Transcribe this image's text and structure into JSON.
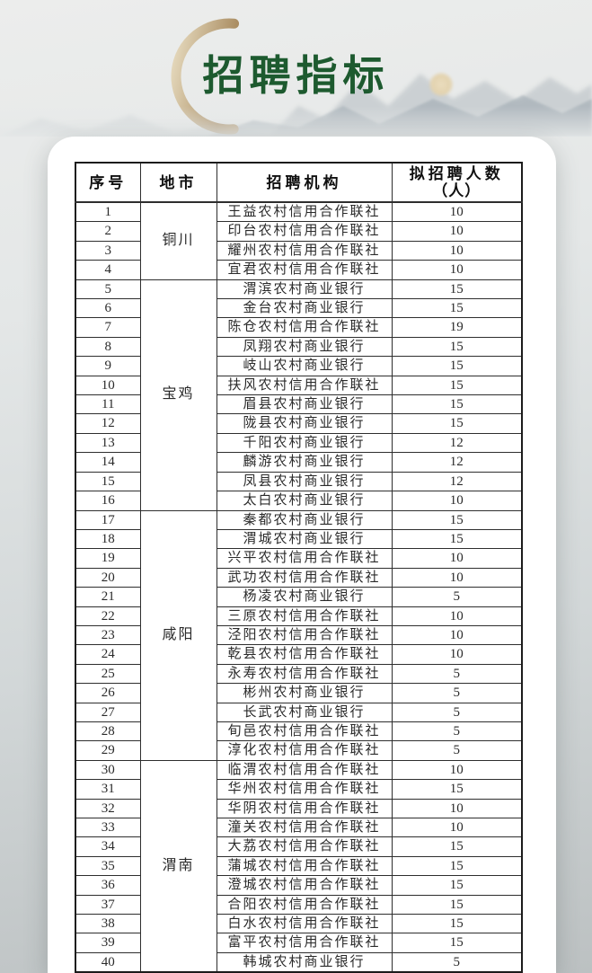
{
  "title": "招聘指标",
  "table": {
    "columns": [
      {
        "label": "序号"
      },
      {
        "label": "地市"
      },
      {
        "label": "招聘机构"
      },
      {
        "label": "拟招聘人数",
        "label2": "（人）"
      }
    ],
    "groups": [
      {
        "city": "铜川",
        "rows": [
          {
            "no": "1",
            "org": "王益农村信用合作联社",
            "count": "10"
          },
          {
            "no": "2",
            "org": "印台农村信用合作联社",
            "count": "10"
          },
          {
            "no": "3",
            "org": "耀州农村信用合作联社",
            "count": "10"
          },
          {
            "no": "4",
            "org": "宜君农村信用合作联社",
            "count": "10"
          }
        ]
      },
      {
        "city": "宝鸡",
        "rows": [
          {
            "no": "5",
            "org": "渭滨农村商业银行",
            "count": "15"
          },
          {
            "no": "6",
            "org": "金台农村商业银行",
            "count": "15"
          },
          {
            "no": "7",
            "org": "陈仓农村信用合作联社",
            "count": "19"
          },
          {
            "no": "8",
            "org": "凤翔农村商业银行",
            "count": "15"
          },
          {
            "no": "9",
            "org": "岐山农村商业银行",
            "count": "15"
          },
          {
            "no": "10",
            "org": "扶风农村信用合作联社",
            "count": "15"
          },
          {
            "no": "11",
            "org": "眉县农村商业银行",
            "count": "15"
          },
          {
            "no": "12",
            "org": "陇县农村商业银行",
            "count": "15"
          },
          {
            "no": "13",
            "org": "千阳农村商业银行",
            "count": "12"
          },
          {
            "no": "14",
            "org": "麟游农村商业银行",
            "count": "12"
          },
          {
            "no": "15",
            "org": "凤县农村商业银行",
            "count": "12"
          },
          {
            "no": "16",
            "org": "太白农村商业银行",
            "count": "10"
          }
        ]
      },
      {
        "city": "咸阳",
        "rows": [
          {
            "no": "17",
            "org": "秦都农村商业银行",
            "count": "15"
          },
          {
            "no": "18",
            "org": "渭城农村商业银行",
            "count": "15"
          },
          {
            "no": "19",
            "org": "兴平农村信用合作联社",
            "count": "10"
          },
          {
            "no": "20",
            "org": "武功农村信用合作联社",
            "count": "10"
          },
          {
            "no": "21",
            "org": "杨凌农村商业银行",
            "count": "5"
          },
          {
            "no": "22",
            "org": "三原农村信用合作联社",
            "count": "10"
          },
          {
            "no": "23",
            "org": "泾阳农村信用合作联社",
            "count": "10"
          },
          {
            "no": "24",
            "org": "乾县农村信用合作联社",
            "count": "10"
          },
          {
            "no": "25",
            "org": "永寿农村信用合作联社",
            "count": "5"
          },
          {
            "no": "26",
            "org": "彬州农村商业银行",
            "count": "5"
          },
          {
            "no": "27",
            "org": "长武农村商业银行",
            "count": "5"
          },
          {
            "no": "28",
            "org": "旬邑农村信用合作联社",
            "count": "5"
          },
          {
            "no": "29",
            "org": "淳化农村信用合作联社",
            "count": "5"
          }
        ]
      },
      {
        "city": "渭南",
        "rows": [
          {
            "no": "30",
            "org": "临渭农村信用合作联社",
            "count": "10"
          },
          {
            "no": "31",
            "org": "华州农村信用合作联社",
            "count": "15"
          },
          {
            "no": "32",
            "org": "华阴农村信用合作联社",
            "count": "10"
          },
          {
            "no": "33",
            "org": "潼关农村信用合作联社",
            "count": "10"
          },
          {
            "no": "34",
            "org": "大荔农村信用合作联社",
            "count": "15"
          },
          {
            "no": "35",
            "org": "蒲城农村信用合作联社",
            "count": "15"
          },
          {
            "no": "36",
            "org": "澄城农村信用合作联社",
            "count": "15"
          },
          {
            "no": "37",
            "org": "合阳农村信用合作联社",
            "count": "15"
          },
          {
            "no": "38",
            "org": "白水农村信用合作联社",
            "count": "15"
          },
          {
            "no": "39",
            "org": "富平农村信用合作联社",
            "count": "15"
          },
          {
            "no": "40",
            "org": "韩城农村商业银行",
            "count": "5"
          }
        ]
      }
    ]
  },
  "colors": {
    "title_green": "#1d5a2f",
    "crescent_gold": "#b29468",
    "card_white": "#ffffff",
    "table_border": "#2e2e2e",
    "background_gray": "#d2d7d8"
  }
}
